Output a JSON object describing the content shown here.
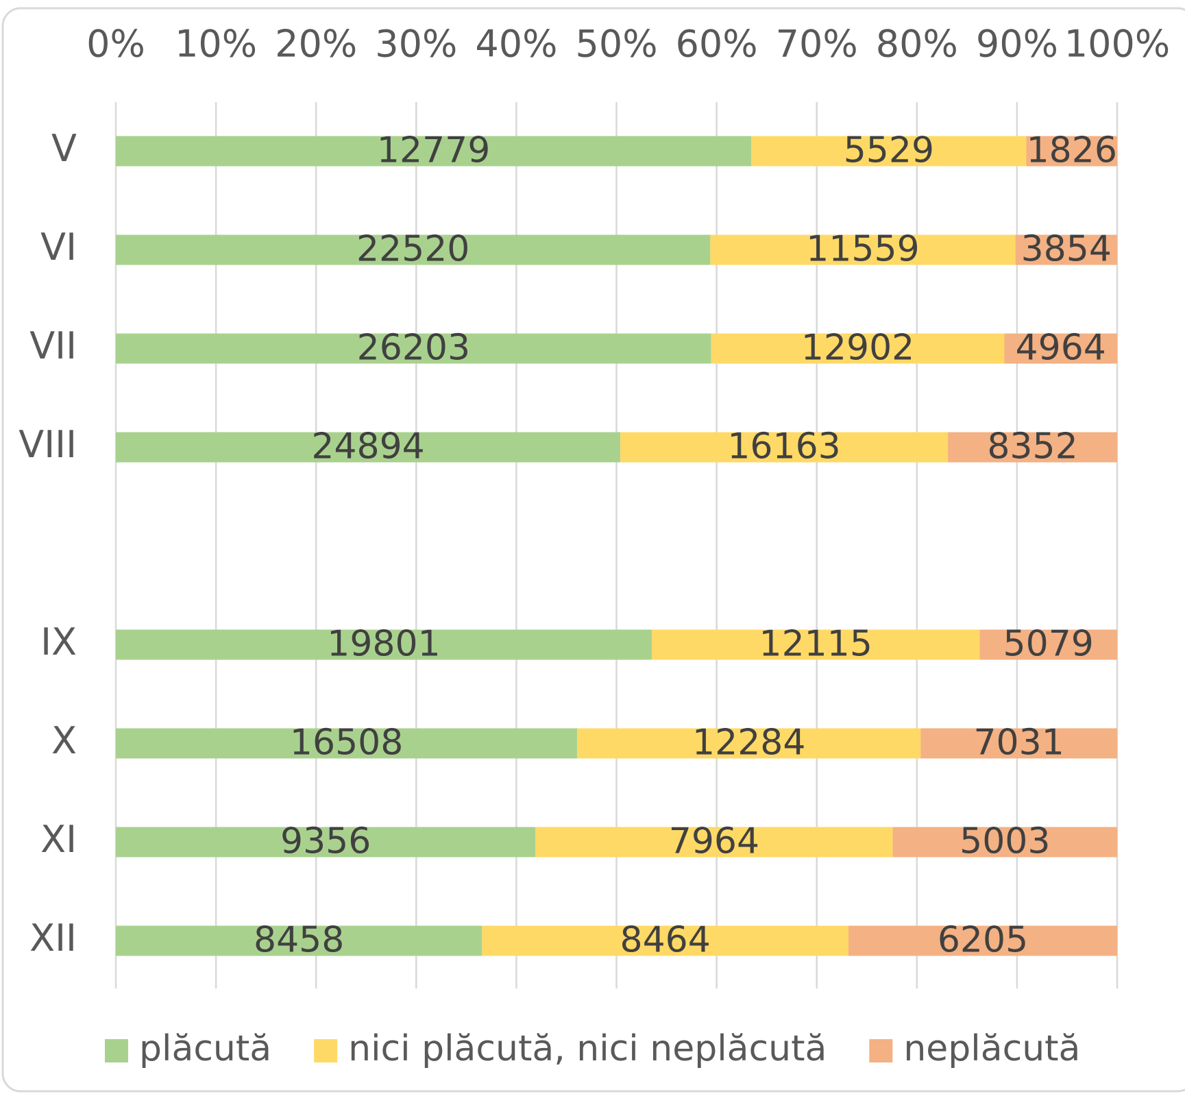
{
  "chart_data": {
    "type": "bar",
    "orientation": "horizontal",
    "stacking": "percent",
    "categories": [
      "V",
      "VI",
      "VII",
      "VIII",
      null,
      "IX",
      "X",
      "XI",
      "XII"
    ],
    "series": [
      {
        "name": "plăcută",
        "color": "#a9d18e",
        "values": [
          12779,
          22520,
          26203,
          24894,
          null,
          19801,
          16508,
          9356,
          8458
        ]
      },
      {
        "name": "nici plăcută, nici neplăcută",
        "color": "#ffd966",
        "values": [
          5529,
          11559,
          12902,
          16163,
          null,
          12115,
          12284,
          7964,
          8464
        ]
      },
      {
        "name": "neplăcută",
        "color": "#f4b183",
        "values": [
          1826,
          3854,
          4964,
          8352,
          null,
          5079,
          7031,
          5003,
          6205
        ]
      }
    ],
    "xlim": [
      0,
      100
    ],
    "xticks": [
      {
        "value": 0,
        "label": "0%"
      },
      {
        "value": 10,
        "label": "10%"
      },
      {
        "value": 20,
        "label": "20%"
      },
      {
        "value": 30,
        "label": "30%"
      },
      {
        "value": 40,
        "label": "40%"
      },
      {
        "value": 50,
        "label": "50%"
      },
      {
        "value": 60,
        "label": "60%"
      },
      {
        "value": 70,
        "label": "70%"
      },
      {
        "value": 80,
        "label": "80%"
      },
      {
        "value": 90,
        "label": "90%"
      },
      {
        "value": 100,
        "label": "100%"
      }
    ],
    "grid": true,
    "legend": "bottom"
  }
}
